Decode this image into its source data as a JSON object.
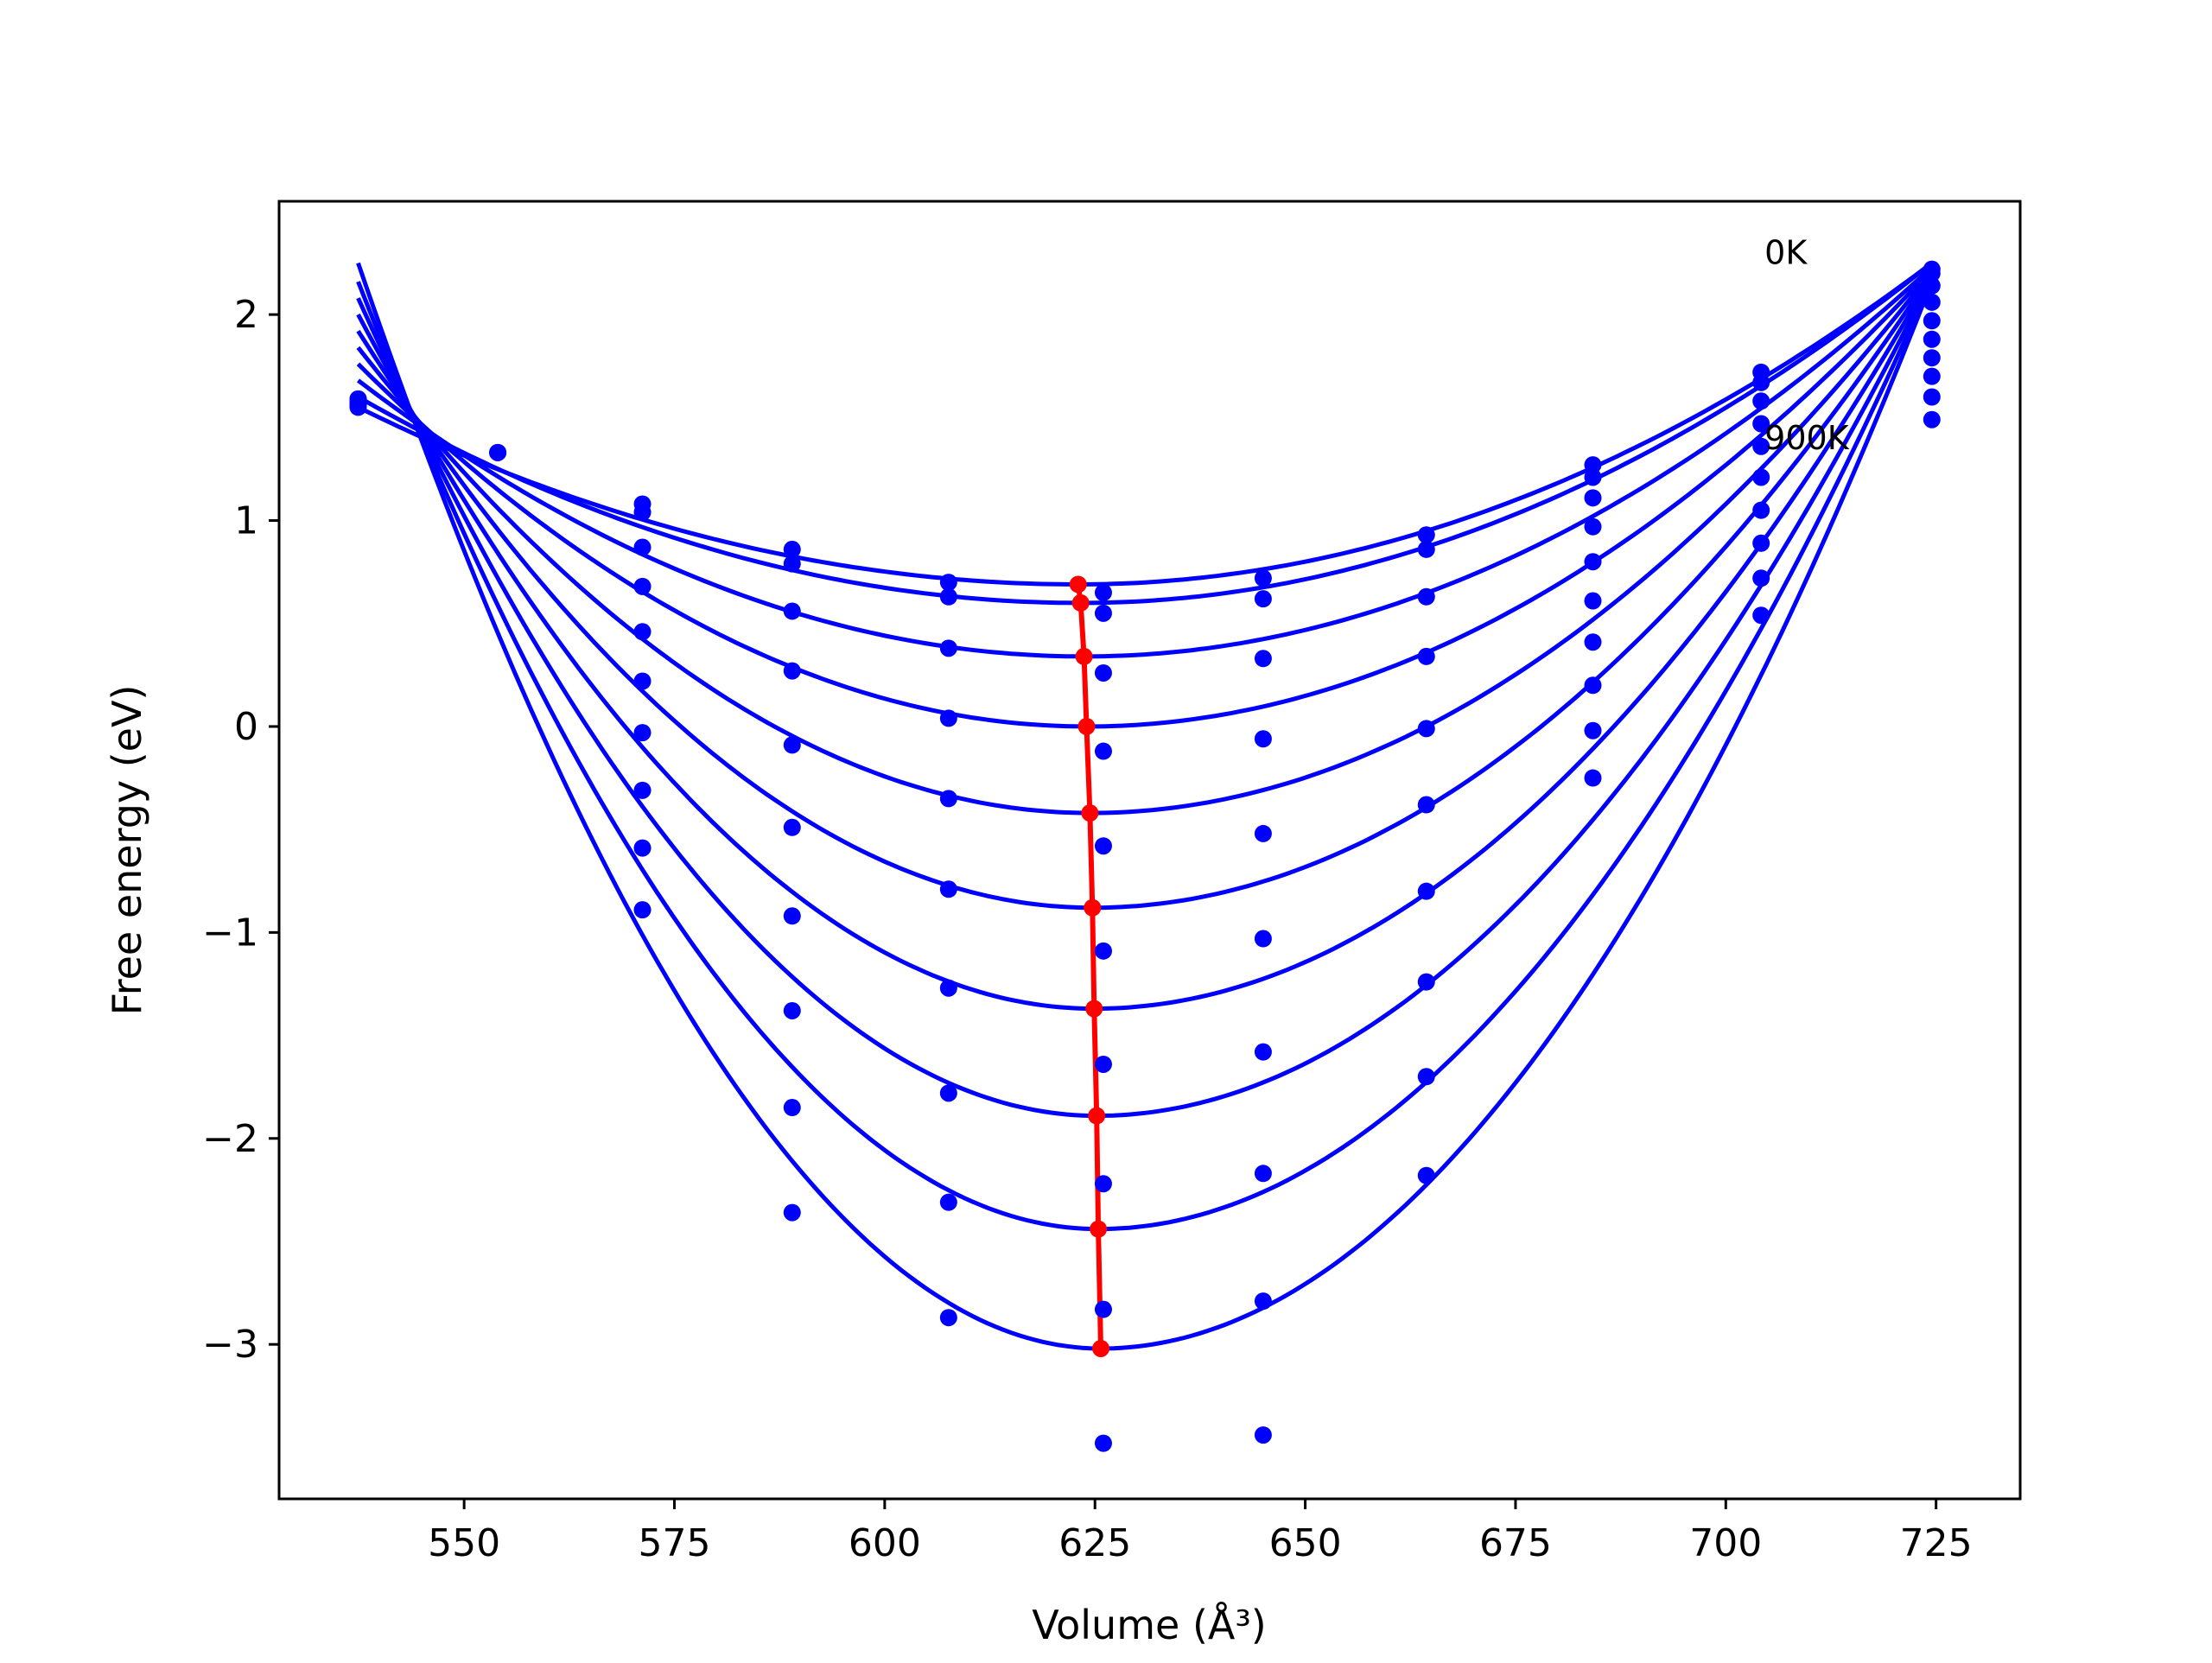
{
  "chart_data": {
    "type": "line",
    "xlabel": "Volume (Å³)",
    "ylabel": "Free energy (eV)",
    "xlim": [
      528,
      735
    ],
    "ylim": [
      -3.75,
      2.55
    ],
    "xticks": [
      550,
      575,
      600,
      625,
      650,
      675,
      700,
      725
    ],
    "xtick_labels": [
      "550",
      "575",
      "600",
      "625",
      "650",
      "675",
      "700",
      "725"
    ],
    "yticks": [
      -3,
      -2,
      -1,
      0,
      1,
      2
    ],
    "ytick_labels": [
      "−3",
      "−2",
      "−1",
      "0",
      "1",
      "2"
    ],
    "grid": false,
    "annotations": [
      {
        "text": "0K",
        "x": 704.2,
        "y": 2.3
      },
      {
        "text": "900K",
        "x": 704.2,
        "y": 1.4
      }
    ],
    "colors": {
      "curves": "#0000ff",
      "points": "#0000ff",
      "minima": "#ff0000",
      "axes": "#000000"
    },
    "fit_x_range": [
      537.4,
      724.5
    ],
    "curves": [
      {
        "v_min": 623.0,
        "e_min": 0.69,
        "e_left": 1.55,
        "e_right": 2.25
      },
      {
        "v_min": 623.3,
        "e_min": 0.6,
        "e_left": 1.6,
        "e_right": 2.25
      },
      {
        "v_min": 623.7,
        "e_min": 0.34,
        "e_left": 1.68,
        "e_right": 2.23
      },
      {
        "v_min": 624.0,
        "e_min": 0.0,
        "e_left": 1.76,
        "e_right": 2.22
      },
      {
        "v_min": 624.4,
        "e_min": -0.42,
        "e_left": 1.84,
        "e_right": 2.21
      },
      {
        "v_min": 624.7,
        "e_min": -0.88,
        "e_left": 1.92,
        "e_right": 2.2
      },
      {
        "v_min": 624.9,
        "e_min": -1.37,
        "e_left": 2.0,
        "e_right": 2.19
      },
      {
        "v_min": 625.2,
        "e_min": -1.89,
        "e_left": 2.08,
        "e_right": 2.18
      },
      {
        "v_min": 625.4,
        "e_min": -2.44,
        "e_left": 2.16,
        "e_right": 2.17
      },
      {
        "v_min": 625.7,
        "e_min": -3.02,
        "e_left": 2.25,
        "e_right": 2.16
      }
    ],
    "points": {
      "x": [
        537.4,
        554.0,
        571.2,
        589.0,
        607.6,
        626.0,
        645.0,
        664.4,
        684.2,
        704.2,
        724.5
      ],
      "series": [
        [
          1.55,
          1.33,
          1.08,
          0.86,
          0.7,
          0.65,
          0.72,
          0.93,
          1.27,
          1.72,
          2.22
        ],
        [
          1.56,
          1.33,
          1.04,
          0.79,
          0.63,
          0.55,
          0.62,
          0.86,
          1.21,
          1.67,
          2.2
        ],
        [
          1.56,
          null,
          0.87,
          0.56,
          0.38,
          0.26,
          0.33,
          0.63,
          1.11,
          1.58,
          2.14
        ],
        [
          1.57,
          null,
          0.68,
          0.27,
          0.04,
          -0.12,
          -0.06,
          0.34,
          0.97,
          1.47,
          2.06
        ],
        [
          1.57,
          null,
          0.46,
          -0.09,
          -0.35,
          -0.58,
          -0.52,
          -0.01,
          0.8,
          1.36,
          1.97
        ],
        [
          1.58,
          null,
          0.22,
          -0.49,
          -0.79,
          -1.09,
          -1.03,
          -0.38,
          0.61,
          1.21,
          1.88
        ],
        [
          1.58,
          null,
          -0.03,
          -0.92,
          -1.27,
          -1.64,
          -1.58,
          -0.8,
          0.41,
          1.05,
          1.79
        ],
        [
          1.58,
          null,
          -0.31,
          -1.38,
          -1.78,
          -2.22,
          -2.17,
          -1.24,
          0.2,
          0.89,
          1.7
        ],
        [
          1.59,
          null,
          -0.59,
          -1.85,
          -2.31,
          -2.83,
          -2.79,
          -1.7,
          -0.02,
          0.72,
          1.6
        ],
        [
          1.59,
          null,
          -0.89,
          -2.36,
          -2.87,
          -3.48,
          -3.44,
          -2.18,
          -0.25,
          0.54,
          1.49
        ]
      ]
    },
    "minima_line": {
      "x": [
        623.0,
        623.3,
        623.7,
        624.0,
        624.4,
        624.7,
        624.9,
        625.2,
        625.4,
        625.7
      ],
      "y": [
        0.69,
        0.6,
        0.34,
        0.0,
        -0.42,
        -0.88,
        -1.37,
        -1.89,
        -2.44,
        -3.02
      ]
    }
  }
}
